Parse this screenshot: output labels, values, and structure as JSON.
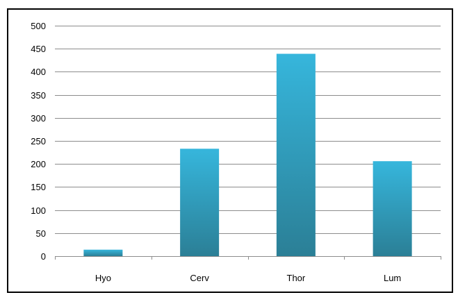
{
  "chart_data": {
    "type": "bar",
    "title": "",
    "xlabel": "",
    "ylabel": "",
    "categories": [
      "Hyo",
      "Cerv",
      "Thor",
      "Lum"
    ],
    "values": [
      14,
      233,
      439,
      206
    ],
    "ylim": [
      0,
      500
    ],
    "yticks": [
      0,
      50,
      100,
      150,
      200,
      250,
      300,
      350,
      400,
      450,
      500
    ],
    "ytick_labels": [
      "0",
      "50",
      "100",
      "150",
      "200",
      "250",
      "300",
      "350",
      "400",
      "450",
      "500"
    ],
    "grid": true,
    "legend": "none",
    "colors": {
      "bar_top": "#36b6dc",
      "bar_bottom": "#2b7f96",
      "grid": "#8c8c8c",
      "axis": "#8c8c8c"
    }
  }
}
